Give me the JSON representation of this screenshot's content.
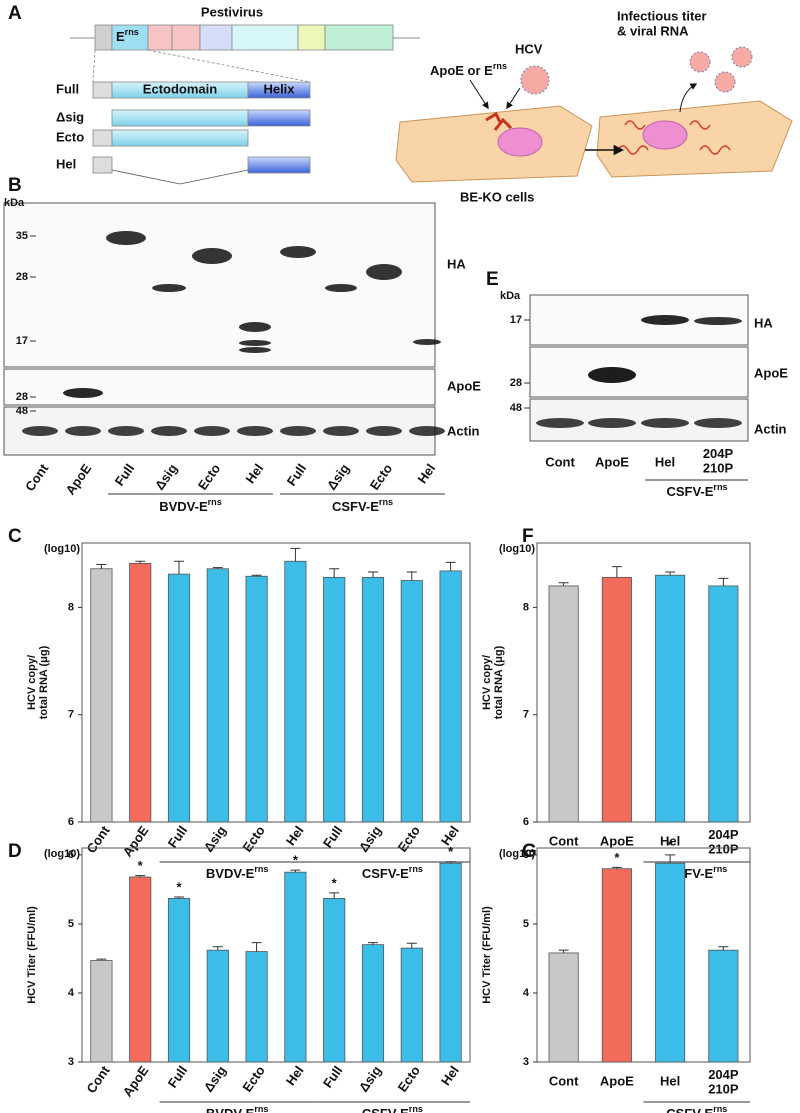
{
  "panel_a": {
    "label": "A",
    "genome_title": "Pestivirus",
    "erns": {
      "text": "E",
      "sup": "rns"
    },
    "constructs": [
      "Full",
      "Δsig",
      "Ecto",
      "Hel"
    ],
    "domains": [
      "Ectodomain",
      "Helix"
    ],
    "treatment": {
      "text": "ApoE or E",
      "sup": "rns"
    },
    "virus": "HCV",
    "cells": "BE-KO cells",
    "readout": [
      "Infectious titer",
      "& viral RNA"
    ]
  },
  "panel_b": {
    "label": "B",
    "unit": "kDa",
    "markers": [
      35,
      28,
      17,
      28,
      48
    ],
    "rows": [
      "HA",
      "ApoE",
      "Actin"
    ],
    "lanes": [
      "Cont",
      "ApoE",
      "Full",
      "Δsig",
      "Ecto",
      "Hel",
      "Full",
      "Δsig",
      "Ecto",
      "Hel"
    ],
    "groups": [
      {
        "text": "BVDV-E",
        "sup": "rns"
      },
      {
        "text": "CSFV-E",
        "sup": "rns"
      }
    ]
  },
  "panel_e": {
    "label": "E",
    "unit": "kDa",
    "markers": [
      17,
      28,
      48
    ],
    "rows": [
      "HA",
      "ApoE",
      "Actin"
    ],
    "lanes": [
      "Cont",
      "ApoE",
      "Hel",
      "204P\n210P"
    ],
    "groups": [
      {
        "text": "CSFV-E",
        "sup": "rns"
      }
    ]
  },
  "chart_data": [
    {
      "type": "bar",
      "panel": "C",
      "y_unit": "(log10)",
      "y_label": "HCV copy/\ntotal RNA (μg)",
      "categories": [
        "Cont",
        "ApoE",
        "Full",
        "Δsig",
        "Ecto",
        "Hel",
        "Full",
        "Δsig",
        "Ecto",
        "Hel"
      ],
      "values": [
        8.36,
        8.41,
        8.31,
        8.36,
        8.29,
        8.43,
        8.28,
        8.28,
        8.25,
        8.34
      ],
      "errors": [
        0.04,
        0.02,
        0.12,
        0.01,
        0.01,
        0.12,
        0.08,
        0.05,
        0.08,
        0.08
      ],
      "colors": [
        "#c8c8c8",
        "#f26b5b",
        "#3bbde8",
        "#3bbde8",
        "#3bbde8",
        "#3bbde8",
        "#3bbde8",
        "#3bbde8",
        "#3bbde8",
        "#3bbde8"
      ],
      "groups": [
        {
          "text": "BVDV-E",
          "sup": "rns"
        },
        {
          "text": "CSFV-E",
          "sup": "rns"
        }
      ],
      "ylim": [
        6,
        8.6
      ],
      "yticks": [
        6,
        7,
        8
      ]
    },
    {
      "type": "bar",
      "panel": "D",
      "y_unit": "(log10)",
      "y_label": "HCV Titer (FFU/ml)",
      "categories": [
        "Cont",
        "ApoE",
        "Full",
        "Δsig",
        "Ecto",
        "Hel",
        "Full",
        "Δsig",
        "Ecto",
        "Hel"
      ],
      "values": [
        4.47,
        5.68,
        5.37,
        4.62,
        4.6,
        5.75,
        5.37,
        4.7,
        4.65,
        5.88
      ],
      "errors": [
        0.02,
        0.02,
        0.02,
        0.05,
        0.13,
        0.03,
        0.08,
        0.03,
        0.07,
        0.02
      ],
      "colors": [
        "#c8c8c8",
        "#f26b5b",
        "#3bbde8",
        "#3bbde8",
        "#3bbde8",
        "#3bbde8",
        "#3bbde8",
        "#3bbde8",
        "#3bbde8",
        "#3bbde8"
      ],
      "significance_labels": [
        null,
        "*",
        "*",
        null,
        null,
        "*",
        "*",
        null,
        null,
        "*"
      ],
      "groups": [
        {
          "text": "BVDV E",
          "sup": "rns"
        },
        {
          "text": "CSFV E",
          "sup": "rns"
        }
      ],
      "ylim": [
        3,
        6.1
      ],
      "yticks": [
        3,
        4,
        5,
        6
      ]
    },
    {
      "type": "bar",
      "panel": "F",
      "y_unit": "(log10)",
      "y_label": "HCV copy/\ntotal RNA (μg)",
      "categories": [
        "Cont",
        "ApoE",
        "Hel",
        "204P\n210P"
      ],
      "values": [
        8.2,
        8.28,
        8.3,
        8.2
      ],
      "errors": [
        0.03,
        0.1,
        0.03,
        0.07
      ],
      "colors": [
        "#c8c8c8",
        "#f26b5b",
        "#3bbde8",
        "#3bbde8"
      ],
      "groups": [
        {
          "text": "CSFV-E",
          "sup": "rns"
        }
      ],
      "ylim": [
        6,
        8.6
      ],
      "yticks": [
        6,
        7,
        8
      ]
    },
    {
      "type": "bar",
      "panel": "G",
      "y_unit": "(log10)",
      "y_label": "HCV Titer (FFU/ml)",
      "categories": [
        "Cont",
        "ApoE",
        "Hel",
        "204P\n210P"
      ],
      "values": [
        4.58,
        5.8,
        5.88,
        4.62
      ],
      "errors": [
        0.04,
        0.02,
        0.12,
        0.05
      ],
      "colors": [
        "#c8c8c8",
        "#f26b5b",
        "#3bbde8",
        "#3bbde8"
      ],
      "significance_labels": [
        null,
        "*",
        "*",
        null
      ],
      "groups": [
        {
          "text": "CSFV E",
          "sup": "rns"
        }
      ],
      "ylim": [
        3,
        6.1
      ],
      "yticks": [
        3,
        4,
        5,
        6
      ]
    }
  ]
}
